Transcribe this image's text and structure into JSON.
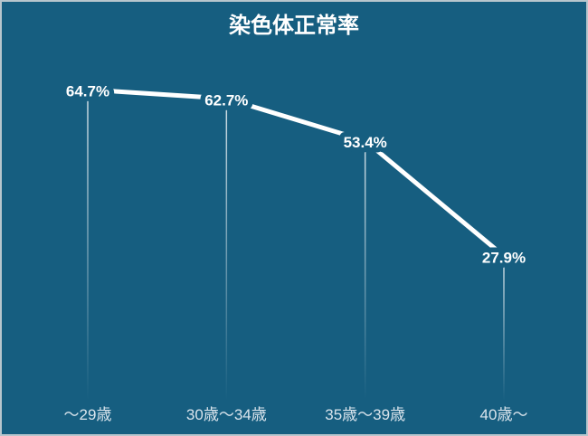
{
  "window": {
    "background_color": "#165e80",
    "border_color": "#b7c6cd",
    "title_color": "#ffffff"
  },
  "chart_data": {
    "type": "line",
    "title": "染色体正常率",
    "categories": [
      "～29歳",
      "30歳～34歳",
      "35歳～39歳",
      "40歳～"
    ],
    "values": [
      64.7,
      62.7,
      53.4,
      27.9
    ],
    "data_labels": [
      "64.7%",
      "62.7%",
      "53.4%",
      "27.9%"
    ],
    "xlabel": "",
    "ylabel": "",
    "ylim": [
      0,
      75
    ],
    "grid": false,
    "legend_position": "none",
    "line_color": "#ffffff",
    "data_label_color": "#ffffff",
    "axis_label_color": "#d9e4ec",
    "drop_line_color": "#ffffff"
  }
}
